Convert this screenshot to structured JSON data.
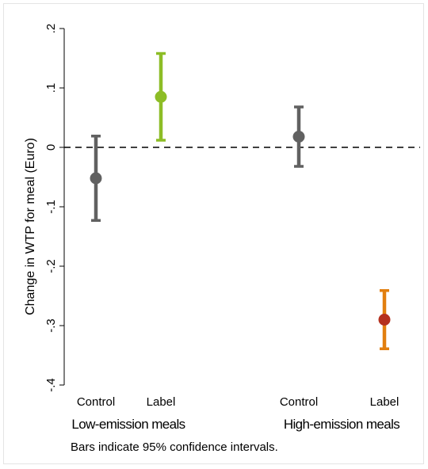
{
  "chart_data": {
    "type": "scatter",
    "subtype": "point-with-error-bars",
    "ylabel": "Change in WTP for meal (Euro)",
    "ylim": [
      -0.4,
      0.2
    ],
    "yticks": [
      0.2,
      0.1,
      0,
      -0.1,
      -0.2,
      -0.3,
      -0.4
    ],
    "ytick_labels": [
      ".2",
      ".1",
      "0",
      "-.1",
      "-.2",
      "-.3",
      "-.4"
    ],
    "reference_line": 0,
    "groups": [
      {
        "label": "Low-emission meals",
        "categories": [
          "Control",
          "Label"
        ]
      },
      {
        "label": "High-emission meals",
        "categories": [
          "Control",
          "Label"
        ]
      }
    ],
    "points": [
      {
        "group": "Low-emission meals",
        "category": "Control",
        "estimate": -0.052,
        "ci_low": -0.123,
        "ci_high": 0.019,
        "color": "#616161",
        "bar_color": "#616161"
      },
      {
        "group": "Low-emission meals",
        "category": "Label",
        "estimate": 0.085,
        "ci_low": 0.012,
        "ci_high": 0.158,
        "color": "#8dbd26",
        "bar_color": "#8dbd26"
      },
      {
        "group": "High-emission meals",
        "category": "Control",
        "estimate": 0.018,
        "ci_low": -0.032,
        "ci_high": 0.068,
        "color": "#616161",
        "bar_color": "#616161"
      },
      {
        "group": "High-emission meals",
        "category": "Label",
        "estimate": -0.29,
        "ci_low": -0.339,
        "ci_high": -0.241,
        "color": "#b5311f",
        "bar_color": "#e27f0f"
      }
    ],
    "note": "Bars indicate 95% confidence intervals."
  }
}
